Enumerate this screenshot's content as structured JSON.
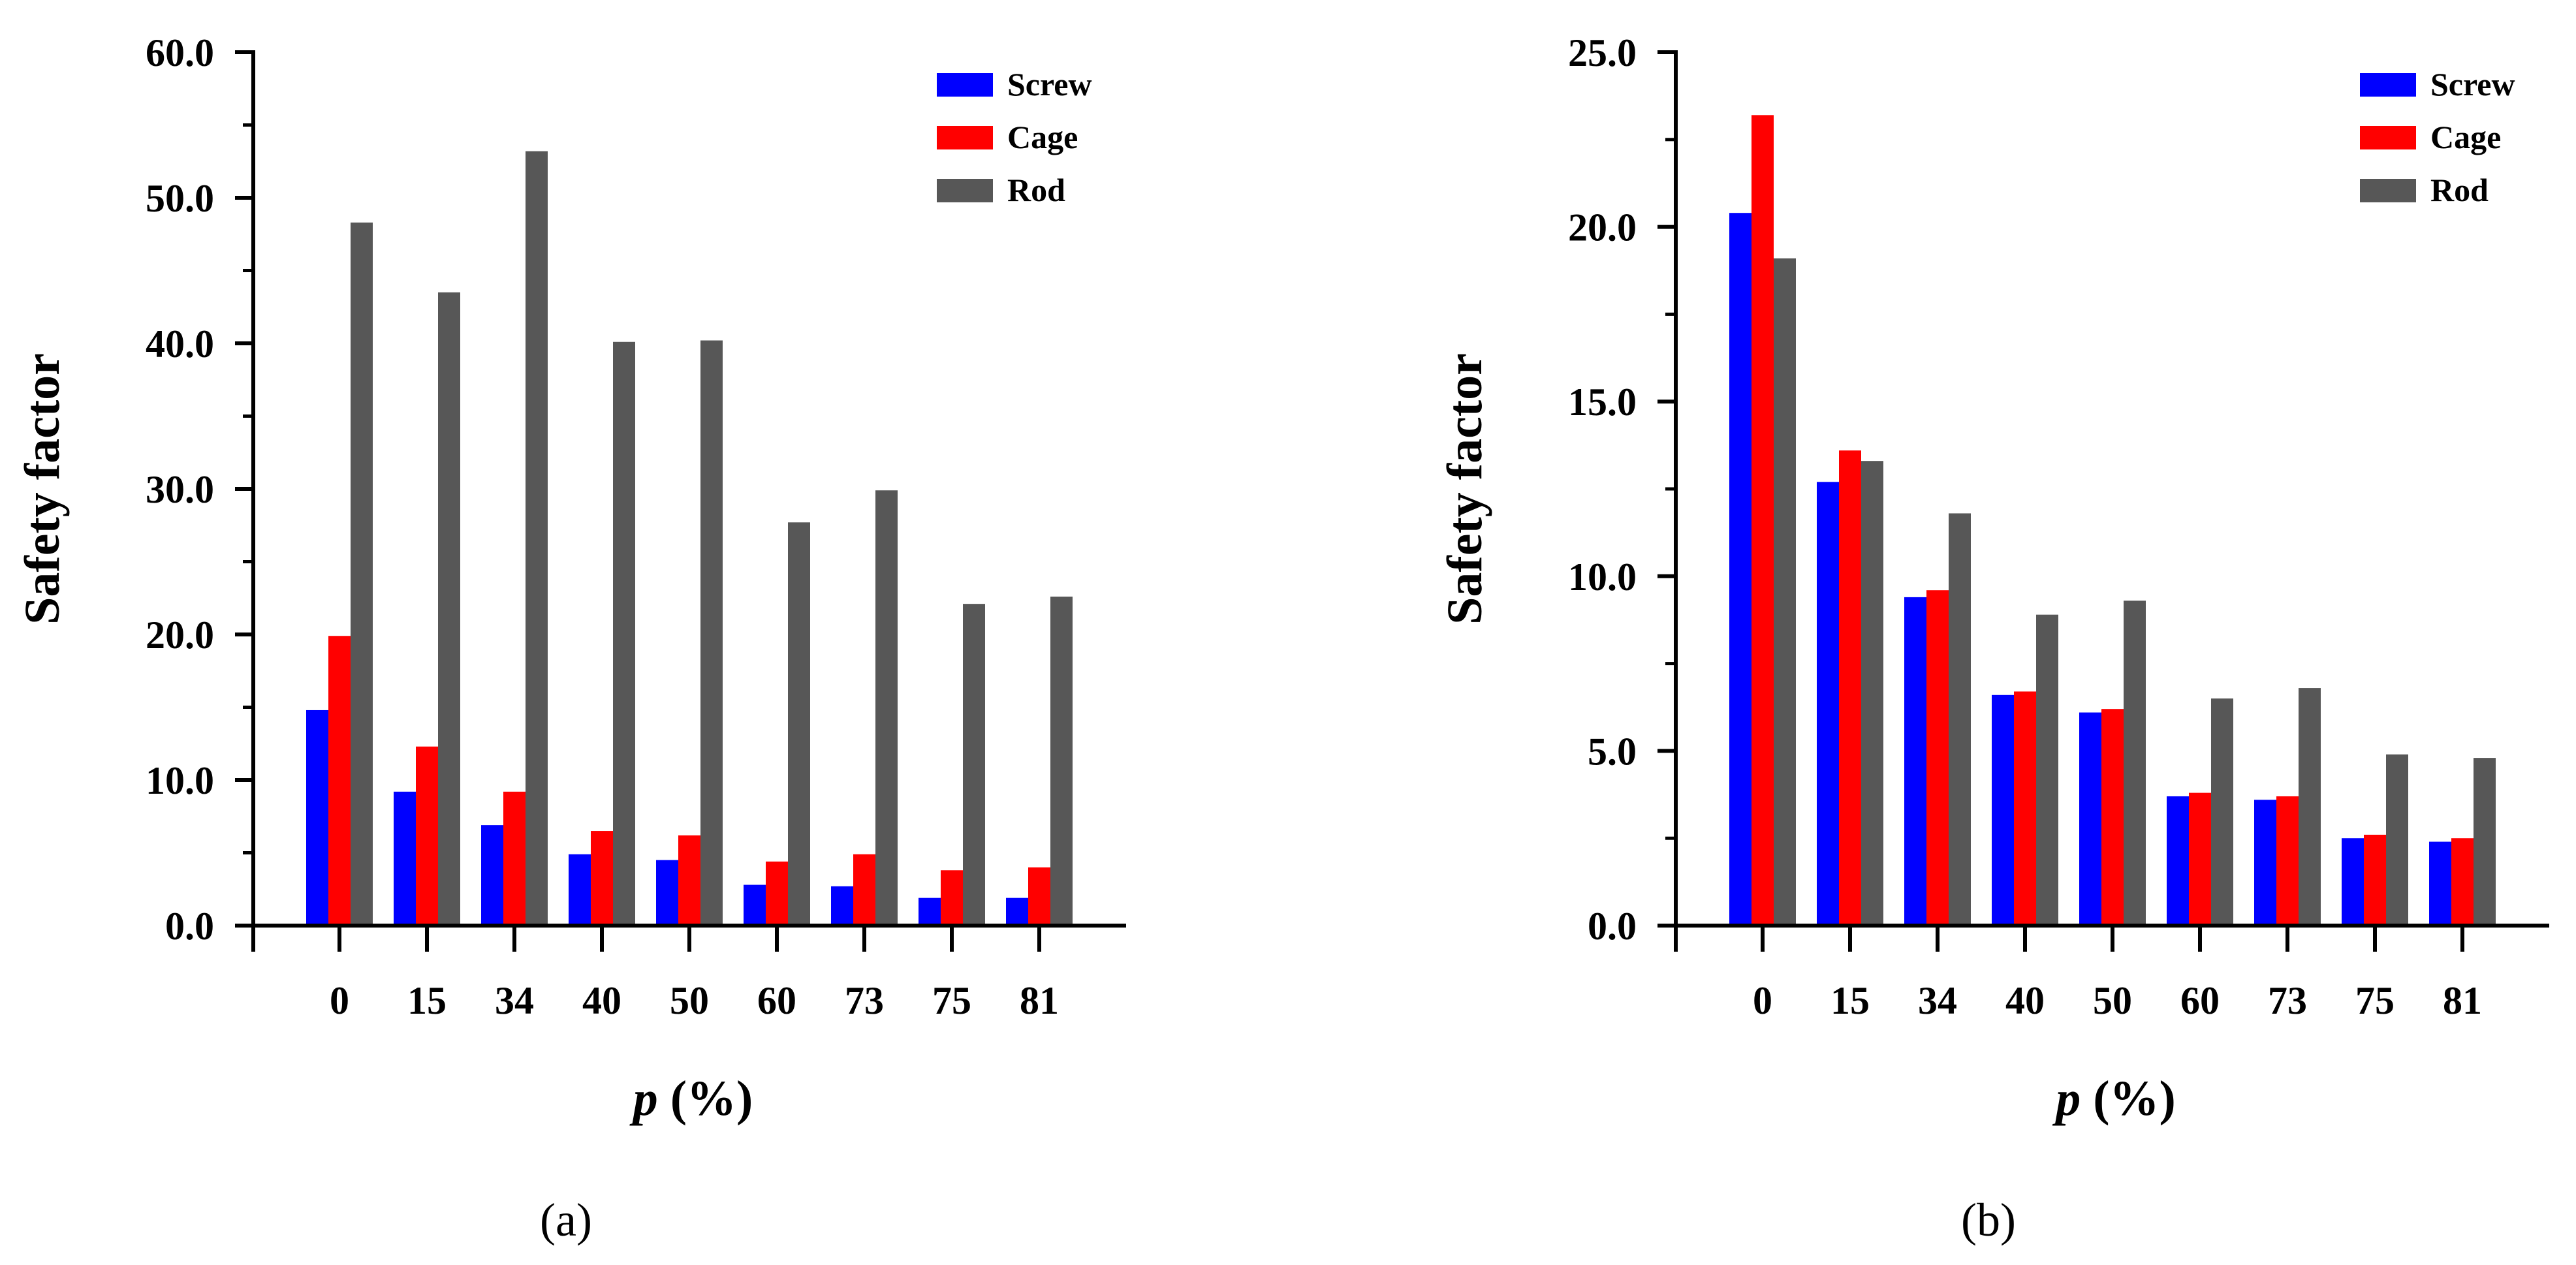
{
  "chart_data": [
    {
      "type": "bar",
      "panel_label": "a",
      "caption_text": "(a)",
      "categories": [
        "0",
        "15",
        "34",
        "40",
        "50",
        "60",
        "73",
        "75",
        "81"
      ],
      "series": [
        {
          "name": "Screw",
          "color": "#0000ff",
          "values": [
            14.8,
            9.2,
            6.9,
            4.9,
            4.5,
            2.8,
            2.7,
            1.9,
            1.9
          ]
        },
        {
          "name": "Cage",
          "color": "#ff0000",
          "values": [
            19.9,
            12.3,
            9.2,
            6.5,
            6.2,
            4.4,
            4.9,
            3.8,
            4.0
          ]
        },
        {
          "name": "Rod",
          "color": "#575757",
          "values": [
            48.3,
            43.5,
            53.2,
            40.1,
            40.2,
            27.7,
            29.9,
            22.1,
            22.6
          ]
        }
      ],
      "title": "",
      "xlabel_var": "p",
      "xlabel_unit": "(%)",
      "ylabel": "Safety factor",
      "ylim": [
        0,
        60
      ],
      "yticks": [
        0,
        10,
        20,
        30,
        40,
        50,
        60
      ],
      "ytick_labels": [
        "0.0",
        "10.0",
        "20.0",
        "30.0",
        "40.0",
        "50.0",
        "60.0"
      ],
      "grid": false,
      "legend_position": "top-right"
    },
    {
      "type": "bar",
      "panel_label": "b",
      "caption_text": "(b)",
      "categories": [
        "0",
        "15",
        "34",
        "40",
        "50",
        "60",
        "73",
        "75",
        "81"
      ],
      "series": [
        {
          "name": "Screw",
          "color": "#0000ff",
          "values": [
            20.4,
            12.7,
            9.4,
            6.6,
            6.1,
            3.7,
            3.6,
            2.5,
            2.4
          ]
        },
        {
          "name": "Cage",
          "color": "#ff0000",
          "values": [
            23.2,
            13.6,
            9.6,
            6.7,
            6.2,
            3.8,
            3.7,
            2.6,
            2.5
          ]
        },
        {
          "name": "Rod",
          "color": "#575757",
          "values": [
            19.1,
            13.3,
            11.8,
            8.9,
            9.3,
            6.5,
            6.8,
            4.9,
            4.8
          ]
        }
      ],
      "title": "",
      "xlabel_var": "p",
      "xlabel_unit": "(%)",
      "ylabel": "Safety factor",
      "ylim": [
        0,
        25
      ],
      "yticks": [
        0,
        5,
        10,
        15,
        20,
        25
      ],
      "ytick_labels": [
        "0.0",
        "5.0",
        "10.0",
        "15.0",
        "20.0",
        "25.0"
      ],
      "grid": false,
      "legend_position": "top-right"
    }
  ]
}
